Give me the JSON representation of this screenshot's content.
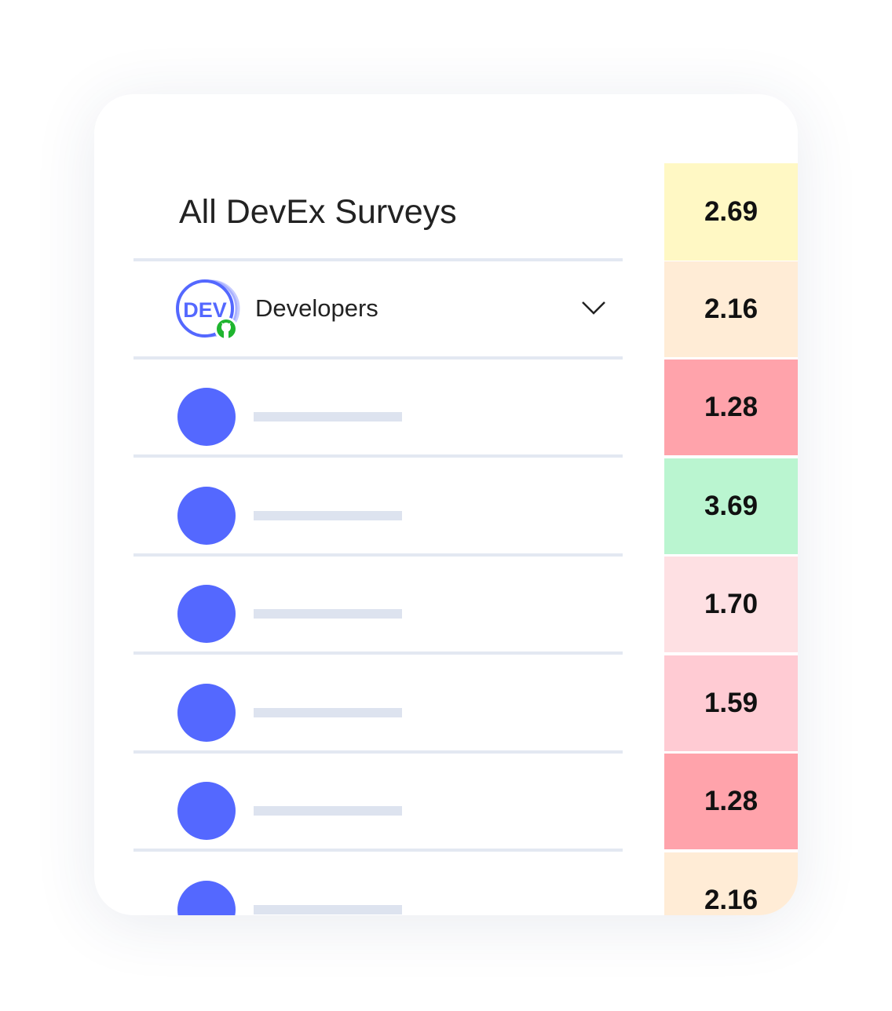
{
  "header": {
    "title": "All DevEx Surveys",
    "score": "2.69",
    "score_color": "#fff8c4"
  },
  "group": {
    "avatar_text": "DEV",
    "name": "Developers",
    "score": "2.16",
    "score_color": "#ffecd6",
    "badge_icon": "github-icon"
  },
  "rows": [
    {
      "score": "1.28",
      "color": "#ffa3ab"
    },
    {
      "score": "3.69",
      "color": "#baf5d0"
    },
    {
      "score": "1.70",
      "color": "#fee0e3"
    },
    {
      "score": "1.59",
      "color": "#ffcbd3"
    },
    {
      "score": "1.28",
      "color": "#ffa3ab"
    },
    {
      "score": "2.16",
      "color": "#ffecd6"
    }
  ],
  "accent": "#5468ff"
}
